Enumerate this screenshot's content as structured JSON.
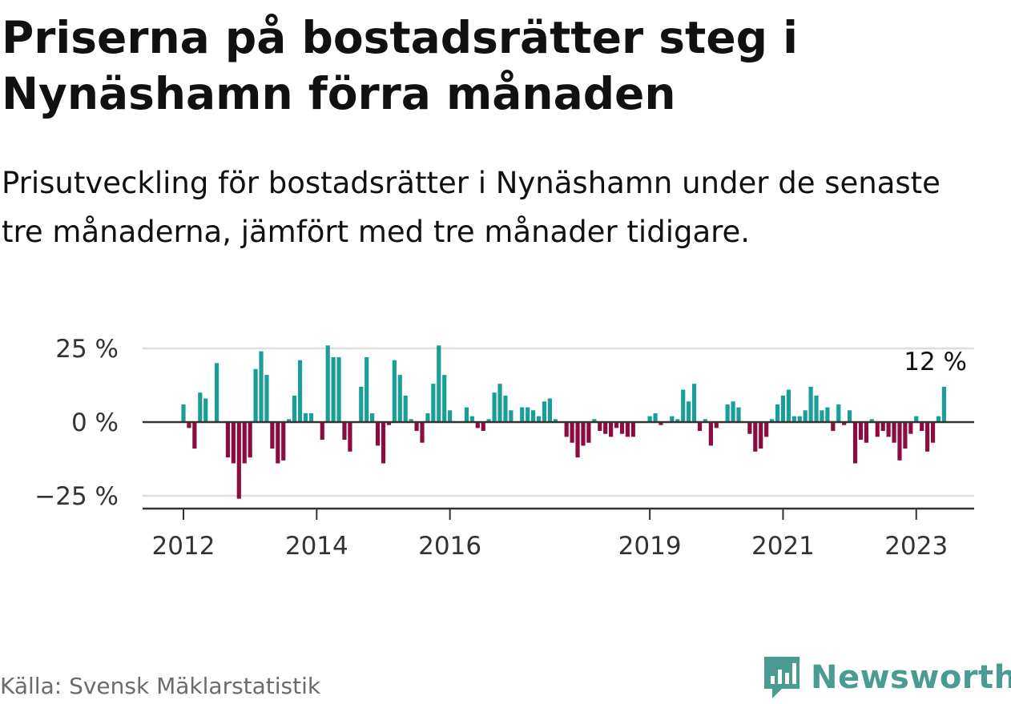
{
  "title": "Priserna på bostadsrätter steg i Nynäshamn förra månaden",
  "subtitle": "Prisutveckling för bostadsrätter i Nynäshamn under de senaste tre månaderna, jämfört med tre månader tidigare.",
  "source": "Källa: Svensk Mäklarstatistik",
  "brand": "Newsworthy",
  "colors": {
    "positive": "#1a9e97",
    "negative": "#8c0c42",
    "grid": "#dddddd",
    "axis": "#333333",
    "brand": "#4a9b92"
  },
  "chart_data": {
    "type": "bar",
    "title": "Prisutveckling för bostadsrätter i Nynäshamn",
    "xlabel": "",
    "ylabel": "",
    "ylim": [
      -30,
      27
    ],
    "y_ticks": [
      25,
      0,
      -25
    ],
    "y_tick_labels": [
      "25 %",
      "0 %",
      "−25 %"
    ],
    "x_ticks": [
      2012,
      2014,
      2016,
      2019,
      2021,
      2023
    ],
    "x_tick_labels": [
      "2012",
      "2014",
      "2016",
      "2019",
      "2021",
      "2023"
    ],
    "start": {
      "year": 2012,
      "month": 1
    },
    "end_label": "12 %",
    "values": [
      6,
      -2,
      -9,
      10,
      8,
      0,
      20,
      0,
      -12,
      -14,
      -26,
      -14,
      -12,
      18,
      24,
      16,
      -9,
      -14,
      -13,
      1,
      9,
      21,
      3,
      3,
      0,
      -6,
      26,
      22,
      22,
      -6,
      -10,
      0,
      12,
      22,
      3,
      -8,
      -14,
      -1,
      21,
      16,
      9,
      1,
      -3,
      -7,
      3,
      13,
      26,
      16,
      4,
      0,
      0,
      5,
      2,
      -2,
      -3,
      1,
      10,
      13,
      9,
      4,
      0,
      5,
      5,
      4,
      2,
      7,
      8,
      1,
      0,
      -5,
      -7,
      -12,
      -8,
      -7,
      1,
      -3,
      -4,
      -5,
      -2,
      -4,
      -5,
      -5,
      0,
      0,
      2,
      3,
      -1,
      0,
      2,
      1,
      11,
      7,
      13,
      -3,
      1,
      -8,
      -2,
      0,
      6,
      7,
      5,
      0,
      -4,
      -10,
      -9,
      -5,
      1,
      6,
      9,
      11,
      2,
      2,
      4,
      12,
      9,
      4,
      5,
      -3,
      6,
      -1,
      4,
      -14,
      -6,
      -7,
      1,
      -5,
      -3,
      -5,
      -7,
      -13,
      -9,
      -4,
      2,
      -3,
      -10,
      -7,
      2,
      12
    ]
  }
}
